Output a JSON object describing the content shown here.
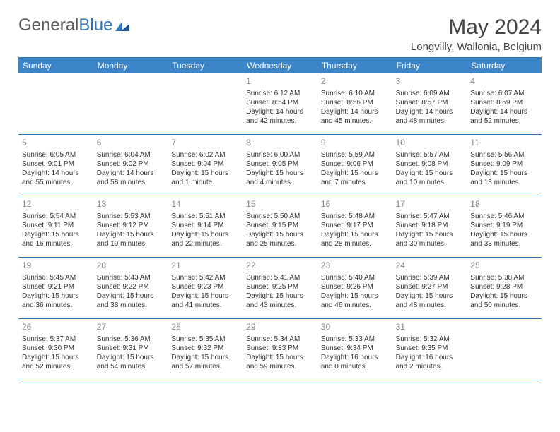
{
  "brand": {
    "word1": "General",
    "word2": "Blue"
  },
  "title": "May 2024",
  "location": "Longvilly, Wallonia, Belgium",
  "colors": {
    "accent_light": "#3a84c7",
    "accent_dark": "#2f77bc",
    "text": "#333333",
    "muted": "#888888",
    "background": "#ffffff"
  },
  "dayNames": [
    "Sunday",
    "Monday",
    "Tuesday",
    "Wednesday",
    "Thursday",
    "Friday",
    "Saturday"
  ],
  "weeks": [
    [
      null,
      null,
      null,
      {
        "n": "1",
        "sr": "Sunrise: 6:12 AM",
        "ss": "Sunset: 8:54 PM",
        "dl": "Daylight: 14 hours and 42 minutes."
      },
      {
        "n": "2",
        "sr": "Sunrise: 6:10 AM",
        "ss": "Sunset: 8:56 PM",
        "dl": "Daylight: 14 hours and 45 minutes."
      },
      {
        "n": "3",
        "sr": "Sunrise: 6:09 AM",
        "ss": "Sunset: 8:57 PM",
        "dl": "Daylight: 14 hours and 48 minutes."
      },
      {
        "n": "4",
        "sr": "Sunrise: 6:07 AM",
        "ss": "Sunset: 8:59 PM",
        "dl": "Daylight: 14 hours and 52 minutes."
      }
    ],
    [
      {
        "n": "5",
        "sr": "Sunrise: 6:05 AM",
        "ss": "Sunset: 9:01 PM",
        "dl": "Daylight: 14 hours and 55 minutes."
      },
      {
        "n": "6",
        "sr": "Sunrise: 6:04 AM",
        "ss": "Sunset: 9:02 PM",
        "dl": "Daylight: 14 hours and 58 minutes."
      },
      {
        "n": "7",
        "sr": "Sunrise: 6:02 AM",
        "ss": "Sunset: 9:04 PM",
        "dl": "Daylight: 15 hours and 1 minute."
      },
      {
        "n": "8",
        "sr": "Sunrise: 6:00 AM",
        "ss": "Sunset: 9:05 PM",
        "dl": "Daylight: 15 hours and 4 minutes."
      },
      {
        "n": "9",
        "sr": "Sunrise: 5:59 AM",
        "ss": "Sunset: 9:06 PM",
        "dl": "Daylight: 15 hours and 7 minutes."
      },
      {
        "n": "10",
        "sr": "Sunrise: 5:57 AM",
        "ss": "Sunset: 9:08 PM",
        "dl": "Daylight: 15 hours and 10 minutes."
      },
      {
        "n": "11",
        "sr": "Sunrise: 5:56 AM",
        "ss": "Sunset: 9:09 PM",
        "dl": "Daylight: 15 hours and 13 minutes."
      }
    ],
    [
      {
        "n": "12",
        "sr": "Sunrise: 5:54 AM",
        "ss": "Sunset: 9:11 PM",
        "dl": "Daylight: 15 hours and 16 minutes."
      },
      {
        "n": "13",
        "sr": "Sunrise: 5:53 AM",
        "ss": "Sunset: 9:12 PM",
        "dl": "Daylight: 15 hours and 19 minutes."
      },
      {
        "n": "14",
        "sr": "Sunrise: 5:51 AM",
        "ss": "Sunset: 9:14 PM",
        "dl": "Daylight: 15 hours and 22 minutes."
      },
      {
        "n": "15",
        "sr": "Sunrise: 5:50 AM",
        "ss": "Sunset: 9:15 PM",
        "dl": "Daylight: 15 hours and 25 minutes."
      },
      {
        "n": "16",
        "sr": "Sunrise: 5:48 AM",
        "ss": "Sunset: 9:17 PM",
        "dl": "Daylight: 15 hours and 28 minutes."
      },
      {
        "n": "17",
        "sr": "Sunrise: 5:47 AM",
        "ss": "Sunset: 9:18 PM",
        "dl": "Daylight: 15 hours and 30 minutes."
      },
      {
        "n": "18",
        "sr": "Sunrise: 5:46 AM",
        "ss": "Sunset: 9:19 PM",
        "dl": "Daylight: 15 hours and 33 minutes."
      }
    ],
    [
      {
        "n": "19",
        "sr": "Sunrise: 5:45 AM",
        "ss": "Sunset: 9:21 PM",
        "dl": "Daylight: 15 hours and 36 minutes."
      },
      {
        "n": "20",
        "sr": "Sunrise: 5:43 AM",
        "ss": "Sunset: 9:22 PM",
        "dl": "Daylight: 15 hours and 38 minutes."
      },
      {
        "n": "21",
        "sr": "Sunrise: 5:42 AM",
        "ss": "Sunset: 9:23 PM",
        "dl": "Daylight: 15 hours and 41 minutes."
      },
      {
        "n": "22",
        "sr": "Sunrise: 5:41 AM",
        "ss": "Sunset: 9:25 PM",
        "dl": "Daylight: 15 hours and 43 minutes."
      },
      {
        "n": "23",
        "sr": "Sunrise: 5:40 AM",
        "ss": "Sunset: 9:26 PM",
        "dl": "Daylight: 15 hours and 46 minutes."
      },
      {
        "n": "24",
        "sr": "Sunrise: 5:39 AM",
        "ss": "Sunset: 9:27 PM",
        "dl": "Daylight: 15 hours and 48 minutes."
      },
      {
        "n": "25",
        "sr": "Sunrise: 5:38 AM",
        "ss": "Sunset: 9:28 PM",
        "dl": "Daylight: 15 hours and 50 minutes."
      }
    ],
    [
      {
        "n": "26",
        "sr": "Sunrise: 5:37 AM",
        "ss": "Sunset: 9:30 PM",
        "dl": "Daylight: 15 hours and 52 minutes."
      },
      {
        "n": "27",
        "sr": "Sunrise: 5:36 AM",
        "ss": "Sunset: 9:31 PM",
        "dl": "Daylight: 15 hours and 54 minutes."
      },
      {
        "n": "28",
        "sr": "Sunrise: 5:35 AM",
        "ss": "Sunset: 9:32 PM",
        "dl": "Daylight: 15 hours and 57 minutes."
      },
      {
        "n": "29",
        "sr": "Sunrise: 5:34 AM",
        "ss": "Sunset: 9:33 PM",
        "dl": "Daylight: 15 hours and 59 minutes."
      },
      {
        "n": "30",
        "sr": "Sunrise: 5:33 AM",
        "ss": "Sunset: 9:34 PM",
        "dl": "Daylight: 16 hours and 0 minutes."
      },
      {
        "n": "31",
        "sr": "Sunrise: 5:32 AM",
        "ss": "Sunset: 9:35 PM",
        "dl": "Daylight: 16 hours and 2 minutes."
      },
      null
    ]
  ]
}
